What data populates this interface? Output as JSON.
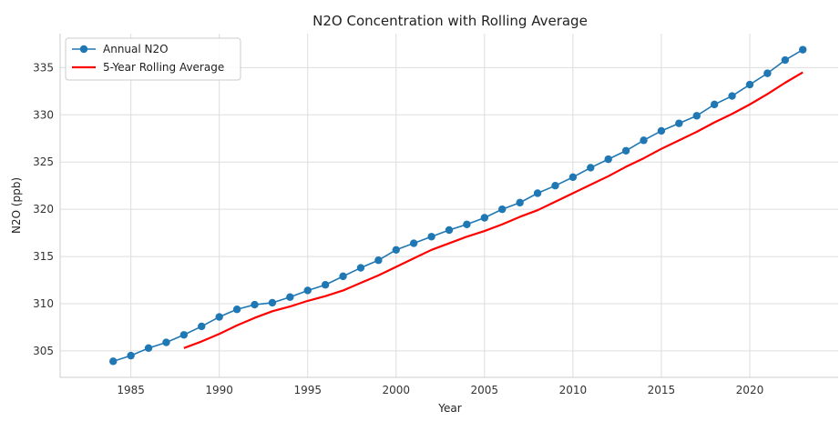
{
  "chart_data": {
    "type": "line",
    "title": "N2O Concentration with Rolling Average",
    "xlabel": "Year",
    "ylabel": "N2O (ppb)",
    "xlim": [
      1981,
      2025
    ],
    "ylim": [
      302.2,
      338.6
    ],
    "xticks": [
      "1985",
      "1990",
      "1995",
      "2000",
      "2005",
      "2010",
      "2015",
      "2020"
    ],
    "yticks": [
      "305",
      "310",
      "315",
      "320",
      "325",
      "330",
      "335"
    ],
    "grid": true,
    "legend_position": "top-left",
    "series": [
      {
        "name": "Annual N2O",
        "color": "#1f77b4",
        "marker": "circle",
        "x": [
          1984,
          1985,
          1986,
          1987,
          1988,
          1989,
          1990,
          1991,
          1992,
          1993,
          1994,
          1995,
          1996,
          1997,
          1998,
          1999,
          2000,
          2001,
          2002,
          2003,
          2004,
          2005,
          2006,
          2007,
          2008,
          2009,
          2010,
          2011,
          2012,
          2013,
          2014,
          2015,
          2016,
          2017,
          2018,
          2019,
          2020,
          2021,
          2022,
          2023
        ],
        "values": [
          303.9,
          304.5,
          305.3,
          305.9,
          306.7,
          307.6,
          308.6,
          309.4,
          309.9,
          310.1,
          310.7,
          311.4,
          312.0,
          312.9,
          313.8,
          314.6,
          315.7,
          316.4,
          317.1,
          317.8,
          318.4,
          319.1,
          320.0,
          320.7,
          321.7,
          322.5,
          323.4,
          324.4,
          325.3,
          326.2,
          327.3,
          328.3,
          329.1,
          329.9,
          331.1,
          332.0,
          333.2,
          334.4,
          335.8,
          336.9
        ]
      },
      {
        "name": "5-Year Rolling Average",
        "color": "#ff0000",
        "marker": "none",
        "x": [
          1988,
          1989,
          1990,
          1991,
          1992,
          1993,
          1994,
          1995,
          1996,
          1997,
          1998,
          1999,
          2000,
          2001,
          2002,
          2003,
          2004,
          2005,
          2006,
          2007,
          2008,
          2009,
          2010,
          2011,
          2012,
          2013,
          2014,
          2015,
          2016,
          2017,
          2018,
          2019,
          2020,
          2021,
          2022,
          2023
        ],
        "values": [
          305.3,
          306.0,
          306.8,
          307.7,
          308.5,
          309.2,
          309.7,
          310.3,
          310.8,
          311.4,
          312.2,
          313.0,
          313.9,
          314.8,
          315.7,
          316.4,
          317.1,
          317.7,
          318.4,
          319.2,
          319.9,
          320.8,
          321.7,
          322.6,
          323.5,
          324.5,
          325.4,
          326.4,
          327.3,
          328.2,
          329.2,
          330.1,
          331.1,
          332.2,
          333.4,
          334.5
        ]
      }
    ]
  }
}
